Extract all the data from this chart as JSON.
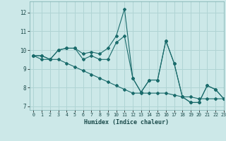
{
  "xlabel": "Humidex (Indice chaleur)",
  "background_color": "#cce8e8",
  "grid_color": "#b0d4d4",
  "line_color": "#1a6b6b",
  "xlim": [
    -0.5,
    23
  ],
  "ylim": [
    6.8,
    12.6
  ],
  "yticks": [
    7,
    8,
    9,
    10,
    11,
    12
  ],
  "xticks": [
    0,
    1,
    2,
    3,
    4,
    5,
    6,
    7,
    8,
    9,
    10,
    11,
    12,
    13,
    14,
    15,
    16,
    17,
    18,
    19,
    20,
    21,
    22,
    23
  ],
  "series": [
    [
      9.7,
      9.7,
      9.5,
      10.0,
      10.1,
      10.1,
      9.8,
      9.9,
      9.8,
      10.1,
      10.75,
      12.2,
      8.5,
      7.75,
      8.4,
      8.4,
      10.5,
      9.3,
      7.5,
      7.2,
      7.2,
      8.1,
      7.9,
      7.4
    ],
    [
      9.7,
      9.7,
      9.5,
      10.0,
      10.1,
      10.1,
      9.5,
      9.7,
      9.5,
      9.5,
      10.4,
      10.75,
      8.5,
      7.75,
      8.4,
      8.4,
      10.5,
      9.3,
      7.5,
      7.2,
      7.2,
      8.1,
      7.9,
      7.4
    ],
    [
      9.7,
      9.5,
      9.5,
      9.5,
      9.3,
      9.1,
      8.9,
      8.7,
      8.5,
      8.3,
      8.1,
      7.9,
      7.7,
      7.7,
      7.7,
      7.7,
      7.7,
      7.6,
      7.5,
      7.5,
      7.4,
      7.4,
      7.4,
      7.4
    ]
  ]
}
